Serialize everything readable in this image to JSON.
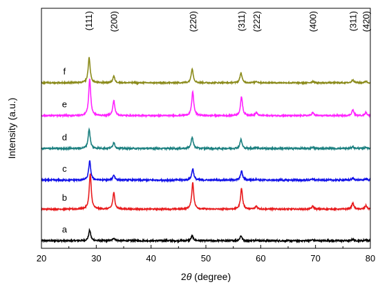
{
  "chart_data": {
    "type": "line",
    "xlabel_prefix": "2",
    "xlabel_symbol": "θ",
    "xlabel_suffix": " (degree)",
    "ylabel": "Intensity (a.u.)",
    "xlim": [
      20,
      80
    ],
    "x_ticks": [
      20,
      30,
      40,
      50,
      60,
      70,
      80
    ],
    "y_ticks_shown": false,
    "grid": false,
    "peak_labels": [
      {
        "text": "(111)",
        "x": 28.6
      },
      {
        "text": "(200)",
        "x": 33.2
      },
      {
        "text": "(220)",
        "x": 47.6
      },
      {
        "text": "(311)",
        "x": 56.4
      },
      {
        "text": "(222)",
        "x": 59.2
      },
      {
        "text": "(400)",
        "x": 69.5
      },
      {
        "text": "(311)",
        "x": 76.8
      },
      {
        "text": "(420)",
        "x": 79.2
      }
    ],
    "series": [
      {
        "name": "a",
        "color": "#000000",
        "baseline": 0.0,
        "noise": 0.6,
        "peaks": [
          [
            28.8,
            4.2
          ],
          [
            33.2,
            1.1
          ],
          [
            47.5,
            2.0
          ],
          [
            56.4,
            2.0
          ],
          [
            59.2,
            0.3
          ],
          [
            69.5,
            0.4
          ],
          [
            76.8,
            0.5
          ],
          [
            79.2,
            0.4
          ]
        ]
      },
      {
        "name": "b",
        "color": "#e8191b",
        "baseline": 12.5,
        "noise": 0.5,
        "peaks": [
          [
            28.9,
            14.0
          ],
          [
            33.2,
            6.5
          ],
          [
            47.6,
            10.5
          ],
          [
            56.5,
            8.2
          ],
          [
            59.2,
            1.2
          ],
          [
            69.5,
            1.2
          ],
          [
            76.8,
            2.4
          ],
          [
            79.2,
            1.4
          ]
        ]
      },
      {
        "name": "c",
        "color": "#1010e8",
        "baseline": 24.0,
        "noise": 0.6,
        "peaks": [
          [
            28.8,
            7.5
          ],
          [
            33.2,
            2.0
          ],
          [
            47.6,
            4.5
          ],
          [
            56.5,
            3.6
          ],
          [
            59.2,
            0.4
          ],
          [
            69.5,
            0.4
          ],
          [
            76.8,
            0.7
          ],
          [
            79.2,
            0.5
          ]
        ]
      },
      {
        "name": "d",
        "color": "#1a7f7f",
        "baseline": 36.5,
        "noise": 0.6,
        "peaks": [
          [
            28.7,
            7.7
          ],
          [
            33.2,
            2.4
          ],
          [
            47.5,
            4.6
          ],
          [
            56.4,
            3.6
          ],
          [
            59.2,
            0.5
          ],
          [
            69.5,
            0.5
          ],
          [
            76.8,
            0.8
          ],
          [
            79.2,
            0.5
          ]
        ]
      },
      {
        "name": "e",
        "color": "#ff22ff",
        "baseline": 49.5,
        "noise": 0.5,
        "peaks": [
          [
            28.8,
            14.5
          ],
          [
            33.2,
            6.0
          ],
          [
            47.6,
            9.5
          ],
          [
            56.5,
            7.5
          ],
          [
            59.2,
            1.2
          ],
          [
            69.5,
            1.2
          ],
          [
            76.8,
            2.3
          ],
          [
            79.2,
            1.3
          ]
        ]
      },
      {
        "name": "f",
        "color": "#8a8a1a",
        "baseline": 62.5,
        "noise": 0.5,
        "peaks": [
          [
            28.7,
            10.0
          ],
          [
            33.2,
            2.6
          ],
          [
            47.5,
            5.7
          ],
          [
            56.4,
            4.0
          ],
          [
            59.2,
            0.6
          ],
          [
            69.5,
            0.6
          ],
          [
            76.8,
            1.2
          ],
          [
            79.2,
            0.6
          ]
        ]
      }
    ],
    "ylim": [
      -3,
      92
    ]
  }
}
